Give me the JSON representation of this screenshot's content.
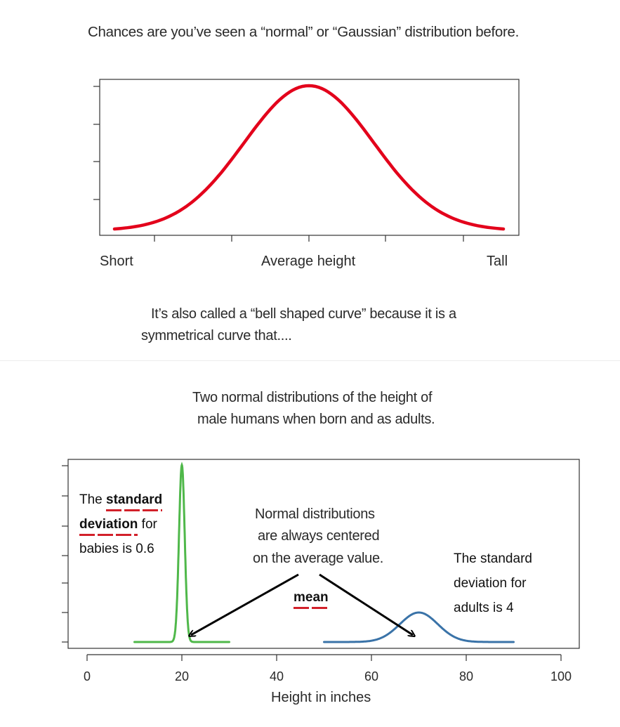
{
  "top": {
    "intro": "Chances are you’ve seen a “normal” or “Gaussian” distribution before.",
    "x_labels": {
      "left": "Short",
      "center": "Average height",
      "right": "Tall"
    },
    "note_line1": "It’s also called a “bell shaped curve” because it is a",
    "note_line2": "symmetrical curve that...."
  },
  "bottom": {
    "title_line1": "Two normal distributions of the height of",
    "title_line2": "male humans when born and as adults.",
    "xlabel": "Height in inches",
    "ann_babies": {
      "pre": "The ",
      "bold1": "standard",
      "bold2": "deviation",
      "post1": " for",
      "post2": "babies is 0.6"
    },
    "ann_center": [
      "Normal distributions",
      "are always centered",
      "on the average value."
    ],
    "ann_mean": "mean",
    "ann_adults": [
      "The standard",
      "deviation for",
      "adults is 4"
    ]
  },
  "chart_data": [
    {
      "type": "line",
      "series": [
        {
          "curve": "normal",
          "mean": 0,
          "sd": 1,
          "x_range": [
            -3,
            3
          ],
          "color": "#e3001b"
        }
      ],
      "xlabel": "",
      "ylabel": "",
      "tick_labels": [
        "Short",
        "Average height",
        "Tall"
      ],
      "grid": false
    },
    {
      "type": "line",
      "xlabel": "Height in inches",
      "x_ticks": [
        0,
        20,
        40,
        60,
        80,
        100
      ],
      "xlim": [
        0,
        100
      ],
      "grid": false,
      "series": [
        {
          "mean": 20,
          "sd": 0.6,
          "x_range": [
            10,
            30
          ],
          "color": "#4fb84a"
        },
        {
          "mean": 70,
          "sd": 4,
          "x_range": [
            50,
            90
          ],
          "color": "#3a73a8"
        }
      ]
    }
  ]
}
